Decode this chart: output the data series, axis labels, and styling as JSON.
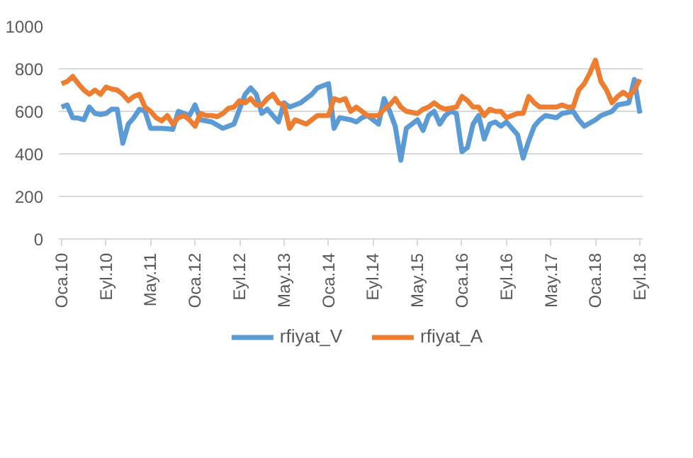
{
  "chart_data": {
    "type": "line",
    "categories": [
      "Oca.10",
      null,
      null,
      null,
      null,
      null,
      null,
      null,
      "Eyl.10",
      null,
      null,
      null,
      null,
      null,
      null,
      null,
      "May.11",
      null,
      null,
      null,
      null,
      null,
      null,
      null,
      "Oca.12",
      null,
      null,
      null,
      null,
      null,
      null,
      null,
      "Eyl.12",
      null,
      null,
      null,
      null,
      null,
      null,
      null,
      "May.13",
      null,
      null,
      null,
      null,
      null,
      null,
      null,
      "Oca.14",
      null,
      null,
      null,
      null,
      null,
      null,
      null,
      "Eyl.14",
      null,
      null,
      null,
      null,
      null,
      null,
      null,
      "May.15",
      null,
      null,
      null,
      null,
      null,
      null,
      null,
      "Oca.16",
      null,
      null,
      null,
      null,
      null,
      null,
      null,
      "Eyl.16",
      null,
      null,
      null,
      null,
      null,
      null,
      null,
      "May.17",
      null,
      null,
      null,
      null,
      null,
      null,
      null,
      "Oca.18",
      null,
      null,
      null,
      null,
      null,
      null,
      null,
      "Eyl.18"
    ],
    "series": [
      {
        "name": "rfiyat_V",
        "color": "#5b9bd5",
        "values": [
          620,
          630,
          570,
          568,
          560,
          620,
          590,
          585,
          590,
          610,
          610,
          450,
          540,
          570,
          610,
          600,
          520,
          520,
          520,
          518,
          515,
          600,
          590,
          580,
          630,
          560,
          555,
          550,
          535,
          520,
          530,
          540,
          610,
          680,
          710,
          680,
          590,
          610,
          580,
          550,
          640,
          620,
          630,
          640,
          660,
          680,
          710,
          720,
          730,
          520,
          570,
          565,
          560,
          550,
          570,
          580,
          560,
          540,
          660,
          600,
          530,
          370,
          520,
          540,
          560,
          510,
          580,
          600,
          540,
          580,
          600,
          590,
          410,
          430,
          540,
          580,
          470,
          540,
          550,
          530,
          550,
          520,
          490,
          380,
          460,
          530,
          560,
          580,
          575,
          570,
          590,
          595,
          600,
          560,
          530,
          545,
          560,
          580,
          590,
          600,
          630,
          635,
          640,
          750,
          590
        ]
      },
      {
        "name": "rfiyat_A",
        "color": "#ed7d31",
        "values": [
          730,
          740,
          764,
          730,
          700,
          680,
          700,
          680,
          714,
          705,
          700,
          680,
          650,
          670,
          680,
          620,
          600,
          570,
          555,
          580,
          540,
          570,
          580,
          560,
          530,
          590,
          580,
          580,
          575,
          590,
          614,
          620,
          650,
          640,
          660,
          630,
          630,
          660,
          680,
          640,
          630,
          520,
          560,
          550,
          540,
          560,
          580,
          580,
          580,
          660,
          650,
          660,
          600,
          620,
          600,
          580,
          580,
          580,
          610,
          630,
          660,
          620,
          600,
          595,
          590,
          610,
          620,
          640,
          620,
          610,
          615,
          620,
          670,
          650,
          620,
          620,
          580,
          610,
          600,
          600,
          570,
          580,
          590,
          590,
          670,
          640,
          620,
          620,
          620,
          620,
          630,
          620,
          620,
          700,
          730,
          780,
          840,
          740,
          700,
          640,
          670,
          690,
          670,
          700,
          750
        ]
      }
    ],
    "ylim": [
      0,
      1000
    ],
    "yticks": [
      0,
      200,
      400,
      600,
      800,
      1000
    ],
    "grid": "y",
    "legend": "bottom",
    "line_style": "solid",
    "marker": "none"
  }
}
